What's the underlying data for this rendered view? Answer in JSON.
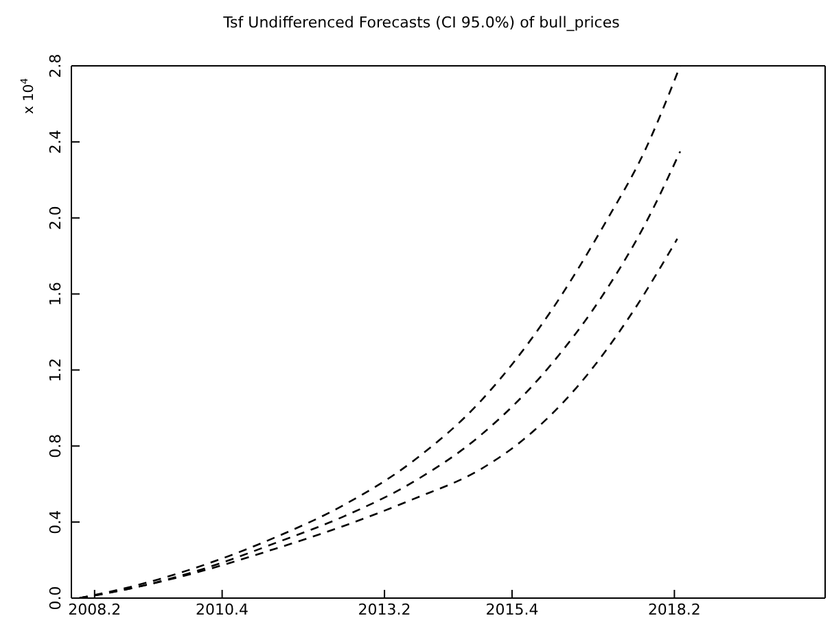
{
  "chart_data": {
    "type": "line",
    "title": "Tsf Undifferenced Forecasts (CI 95.0%) of bull_prices",
    "ylabel": "x 10$^{4}$",
    "xlim": [
      2007.8,
      2020.8
    ],
    "xticks": [
      2008.2,
      2010.4,
      2013.2,
      2015.4,
      2018.2
    ],
    "ylim": [
      0,
      2.8
    ],
    "yticks": [
      {
        "value": 0,
        "label": "0.0"
      },
      0.4,
      0.8,
      1.2,
      1.6,
      {
        "value": 2,
        "label": "2.0"
      },
      2.4,
      2.8
    ],
    "marker": "none",
    "line_style": "dashed",
    "series": [
      {
        "color": "#000000",
        "x": [
          2007.94,
          2008.96,
          2010.14,
          2011.32,
          2012.5,
          2013.69,
          2014.87,
          2016.05,
          2017.0,
          2017.7,
          2018.3
        ],
        "values": [
          0,
          0.07,
          0.18,
          0.32,
          0.49,
          0.72,
          1.04,
          1.5,
          1.97,
          2.36,
          2.8
        ]
      },
      {
        "color": "#000000",
        "x": [
          2007.94,
          2008.96,
          2010.14,
          2011.32,
          2012.5,
          2013.69,
          2014.87,
          2016.05,
          2017.0,
          2017.7,
          2018.3
        ],
        "values": [
          0,
          0.06,
          0.16,
          0.29,
          0.43,
          0.61,
          0.86,
          1.22,
          1.61,
          1.97,
          2.35
        ]
      },
      {
        "color": "#000000",
        "x": [
          2007.94,
          2008.96,
          2010.14,
          2011.32,
          2012.5,
          2013.69,
          2014.87,
          2015.58,
          2016.52,
          2017.47,
          2018.25
        ],
        "values": [
          0,
          0.06,
          0.15,
          0.26,
          0.38,
          0.52,
          0.68,
          0.83,
          1.11,
          1.5,
          1.89
        ]
      }
    ]
  }
}
